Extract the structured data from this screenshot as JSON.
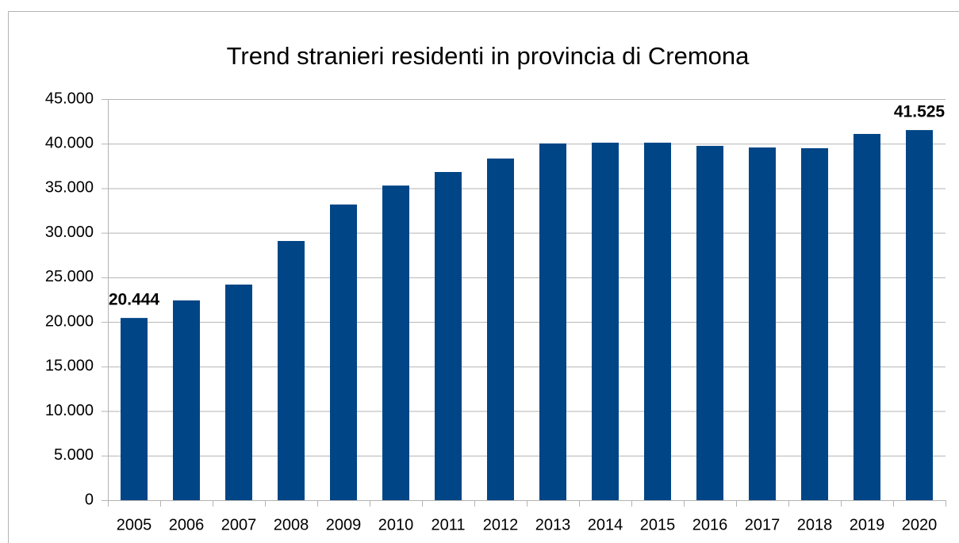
{
  "chart_data": {
    "type": "bar",
    "title": "Trend stranieri residenti in provincia di Cremona",
    "categories": [
      "2005",
      "2006",
      "2007",
      "2008",
      "2009",
      "2010",
      "2011",
      "2012",
      "2013",
      "2014",
      "2015",
      "2016",
      "2017",
      "2018",
      "2019",
      "2020"
    ],
    "values": [
      20444,
      22410,
      24190,
      29080,
      33170,
      35300,
      36820,
      38330,
      40020,
      40110,
      40110,
      39750,
      39570,
      39490,
      41090,
      41525
    ],
    "value_labels": [
      "20.444",
      null,
      null,
      null,
      null,
      null,
      null,
      null,
      null,
      null,
      null,
      null,
      null,
      null,
      null,
      "41.525"
    ],
    "color": "#004586",
    "ylim": [
      0,
      45000
    ],
    "yticks": [
      {
        "value": 0,
        "label": "0"
      },
      {
        "value": 5000,
        "label": "5.000"
      },
      {
        "value": 10000,
        "label": "10.000"
      },
      {
        "value": 15000,
        "label": "15.000"
      },
      {
        "value": 20000,
        "label": "20.000"
      },
      {
        "value": 25000,
        "label": "25.000"
      },
      {
        "value": 30000,
        "label": "30.000"
      },
      {
        "value": 35000,
        "label": "35.000"
      },
      {
        "value": 40000,
        "label": "40.000"
      },
      {
        "value": 45000,
        "label": "45.000"
      }
    ],
    "grid": true
  }
}
